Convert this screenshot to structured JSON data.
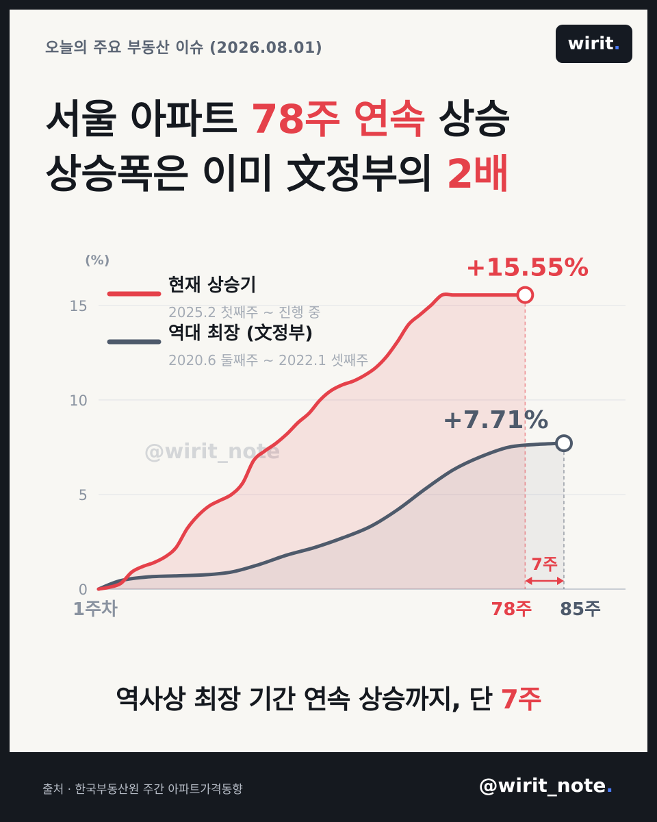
{
  "header": {
    "subtitle": "오늘의 주요 부동산 이슈 (2026.08.01)",
    "brand": "wirit",
    "brand_dot": "."
  },
  "headline": {
    "line1_a": "서울 아파트 ",
    "line1_hl": "78주 연속",
    "line1_b": " 상승",
    "line2_a": "상승폭은 이미 文정부의 ",
    "line2_hl": "2배"
  },
  "chart_data": {
    "type": "line",
    "ylabel": "(%)",
    "ylim": [
      0,
      15.5
    ],
    "yticks": [
      {
        "value": 0,
        "label": "0"
      },
      {
        "value": 5,
        "label": "5"
      },
      {
        "value": 10,
        "label": "10"
      },
      {
        "value": 15,
        "label": "15"
      }
    ],
    "xlim": [
      1,
      85
    ],
    "x_start_label": "1주차",
    "series": [
      {
        "name": "현재 상승기",
        "period": "2025.2 첫째주 ~ 진행 중",
        "color": "#e5414a",
        "end_label": "+15.55%",
        "end_x_label": "78주",
        "x": [
          1,
          3,
          5,
          7,
          9,
          11,
          13,
          15,
          17,
          19,
          21,
          23,
          25,
          27,
          29,
          31,
          33,
          35,
          37,
          39,
          41,
          43,
          45,
          47,
          49,
          51,
          53,
          55,
          57,
          59,
          61,
          63,
          65,
          67,
          69,
          71,
          73,
          75,
          78
        ],
        "values": [
          0.0,
          0.1,
          0.3,
          0.9,
          1.2,
          1.4,
          1.7,
          2.2,
          3.2,
          3.9,
          4.4,
          4.7,
          5.0,
          5.6,
          6.8,
          7.3,
          7.7,
          8.2,
          8.8,
          9.3,
          10.0,
          10.5,
          10.8,
          11.0,
          11.3,
          11.7,
          12.3,
          13.1,
          14.0,
          14.5,
          15.0,
          15.55,
          15.55,
          15.55,
          15.55,
          15.55,
          15.55,
          15.55,
          15.55
        ]
      },
      {
        "name": "역대 최장 (文정부)",
        "period": "2020.6 둘째주 ~ 2022.1 셋째주",
        "color": "#4e5a6b",
        "end_label": "+7.71%",
        "end_x_label": "85주",
        "x": [
          1,
          5,
          10,
          15,
          20,
          25,
          30,
          35,
          40,
          45,
          50,
          55,
          60,
          65,
          70,
          75,
          80,
          85
        ],
        "values": [
          0.0,
          0.45,
          0.65,
          0.7,
          0.75,
          0.9,
          1.3,
          1.8,
          2.2,
          2.7,
          3.3,
          4.2,
          5.3,
          6.3,
          7.0,
          7.5,
          7.65,
          7.71
        ]
      }
    ],
    "gap_label": "7주",
    "watermark": "@wirit_note"
  },
  "conclusion": {
    "text_a": "역사상 최장 기간 연속 상승까지, 단 ",
    "text_hl": "7주"
  },
  "footer": {
    "source": "출처 · 한국부동산원 주간 아파트가격동향",
    "handle": "@wirit_note",
    "handle_dot": "."
  },
  "colors": {
    "accent_red": "#e5414a",
    "slate": "#4e5a6b",
    "background": "#f8f7f3",
    "dark": "#15191f",
    "brand_blue": "#4a7bf7"
  }
}
